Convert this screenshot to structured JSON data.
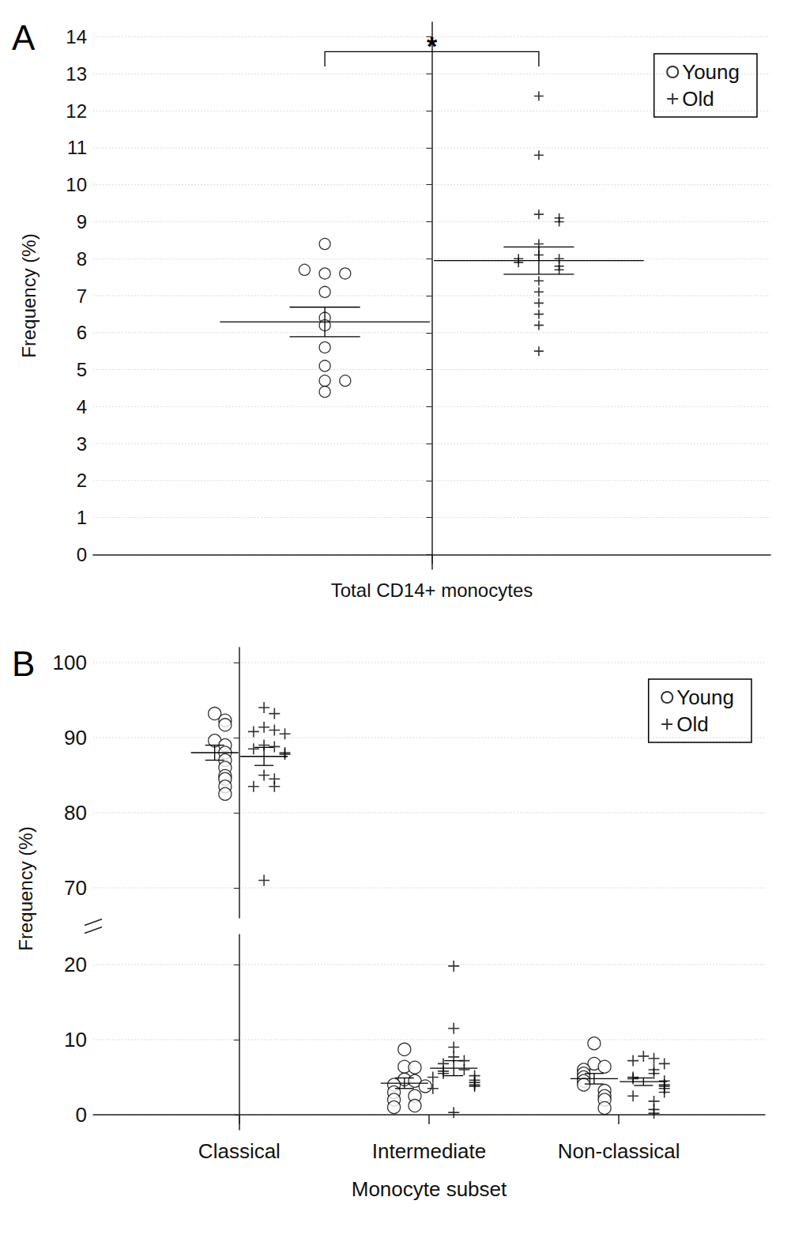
{
  "chart_data": [
    {
      "type": "scatter",
      "title": "A",
      "y_label": "Frequency (%)",
      "categories": [
        "Total CD14+ monocytes"
      ],
      "series": [
        {
          "name": "Young",
          "color": "#000000",
          "marker": "circle",
          "values": [
            [
              8.4,
              7.6,
              7.6,
              7.7,
              7.1,
              6.4,
              6.2,
              5.6,
              5.1,
              4.7,
              4.7,
              4.4
            ]
          ],
          "mean": [
            6.29
          ],
          "sem": [
            0.4
          ]
        },
        {
          "name": "Old",
          "color": "#000000",
          "marker": "plus",
          "values": [
            [
              12.4,
              10.8,
              9.2,
              9.1,
              9.0,
              8.4,
              8.1,
              8.0,
              8.0,
              7.9,
              7.8,
              7.7,
              7.4,
              7.1,
              6.8,
              6.5,
              6.2,
              5.5
            ]
          ],
          "mean": [
            7.95
          ],
          "sem": [
            0.37
          ]
        }
      ],
      "ylim": [
        -0.4,
        14.4
      ],
      "yticks": [
        0,
        1,
        2,
        3,
        4,
        5,
        6,
        7,
        8,
        9,
        10,
        11,
        12,
        13,
        14
      ],
      "grid": true,
      "legend": "top-right",
      "annotations": [
        {
          "text": "*",
          "between": [
            "Young",
            "Old"
          ],
          "category": "Total CD14+ monocytes"
        }
      ]
    },
    {
      "type": "scatter",
      "title": "B",
      "x_label": "Monocyte subset",
      "y_label": "Frequency (%)",
      "categories": [
        "Classical",
        "Intermediate",
        "Non-classical"
      ],
      "series": [
        {
          "name": "Young",
          "color": "#000000",
          "marker": "circle",
          "values": [
            [
              93.2,
              92.3,
              91.7,
              89.6,
              89.0,
              88.0,
              87.0,
              86.0,
              84.9,
              84.5,
              83.5,
              82.5
            ],
            [
              8.7,
              6.4,
              6.3,
              4.7,
              4.5,
              4.0,
              3.8,
              3.0,
              2.5,
              2.0,
              1.2,
              1.0
            ],
            [
              9.5,
              6.8,
              6.4,
              6.0,
              5.5,
              5.0,
              4.5,
              4.0,
              3.2,
              2.5,
              2.0,
              0.9
            ]
          ],
          "mean": [
            88.0,
            4.2,
            4.8
          ],
          "sem": [
            1.0,
            0.7,
            0.7
          ]
        },
        {
          "name": "Old",
          "color": "#000000",
          "marker": "plus",
          "values": [
            [
              94.0,
              93.2,
              91.4,
              91.0,
              90.8,
              90.5,
              89.0,
              88.8,
              88.5,
              88.0,
              87.8,
              85.0,
              84.5,
              83.5,
              83.5,
              71.0
            ],
            [
              19.8,
              11.5,
              9.0,
              7.7,
              7.2,
              6.8,
              6.0,
              5.8,
              5.5,
              5.2,
              5.0,
              4.6,
              4.3,
              4.0,
              3.8,
              3.5,
              0.3
            ],
            [
              7.8,
              7.5,
              7.2,
              6.8,
              6.0,
              5.5,
              5.0,
              4.8,
              4.5,
              4.0,
              3.8,
              3.5,
              3.0,
              2.5,
              1.8,
              0.7,
              0.2
            ]
          ],
          "mean": [
            87.5,
            6.2,
            4.4
          ],
          "sem": [
            1.2,
            1.0,
            0.5
          ]
        }
      ],
      "ylim": [
        [
          -2,
          24
        ],
        [
          66,
          102
        ]
      ],
      "yticks": [
        0,
        10,
        20,
        70,
        80,
        90,
        100
      ],
      "grid": true,
      "legend": "top-right"
    }
  ]
}
